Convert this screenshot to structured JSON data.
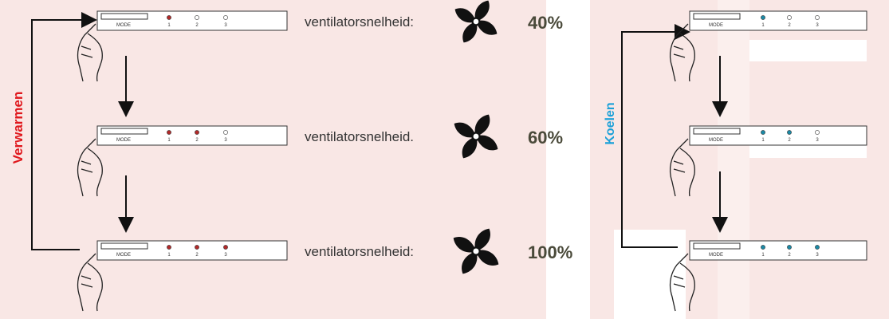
{
  "heating": {
    "label": "Verwarmen",
    "led_color": "#b22a2a",
    "rows": [
      {
        "mode": "MODE",
        "leds": [
          "1",
          "2",
          "3"
        ],
        "lit": [
          true,
          false,
          false
        ],
        "speed_label": "ventilatorsnelheid:",
        "speed": "40%"
      },
      {
        "mode": "MODE",
        "leds": [
          "1",
          "2",
          "3"
        ],
        "lit": [
          true,
          true,
          false
        ],
        "speed_label": "ventilatorsnelheid.",
        "speed": "60%"
      },
      {
        "mode": "MODE",
        "leds": [
          "1",
          "2",
          "3"
        ],
        "lit": [
          true,
          true,
          true
        ],
        "speed_label": "ventilatorsnelheid:",
        "speed": "100%"
      }
    ]
  },
  "cooling": {
    "label": "Koelen",
    "led_color": "#1b8aa6",
    "rows": [
      {
        "mode": "MODE",
        "leds": [
          "1",
          "2",
          "3"
        ],
        "lit": [
          true,
          false,
          false
        ]
      },
      {
        "mode": "MODE",
        "leds": [
          "1",
          "2",
          "3"
        ],
        "lit": [
          true,
          true,
          false
        ]
      },
      {
        "mode": "MODE",
        "leds": [
          "1",
          "2",
          "3"
        ],
        "lit": [
          true,
          true,
          true
        ]
      }
    ]
  }
}
